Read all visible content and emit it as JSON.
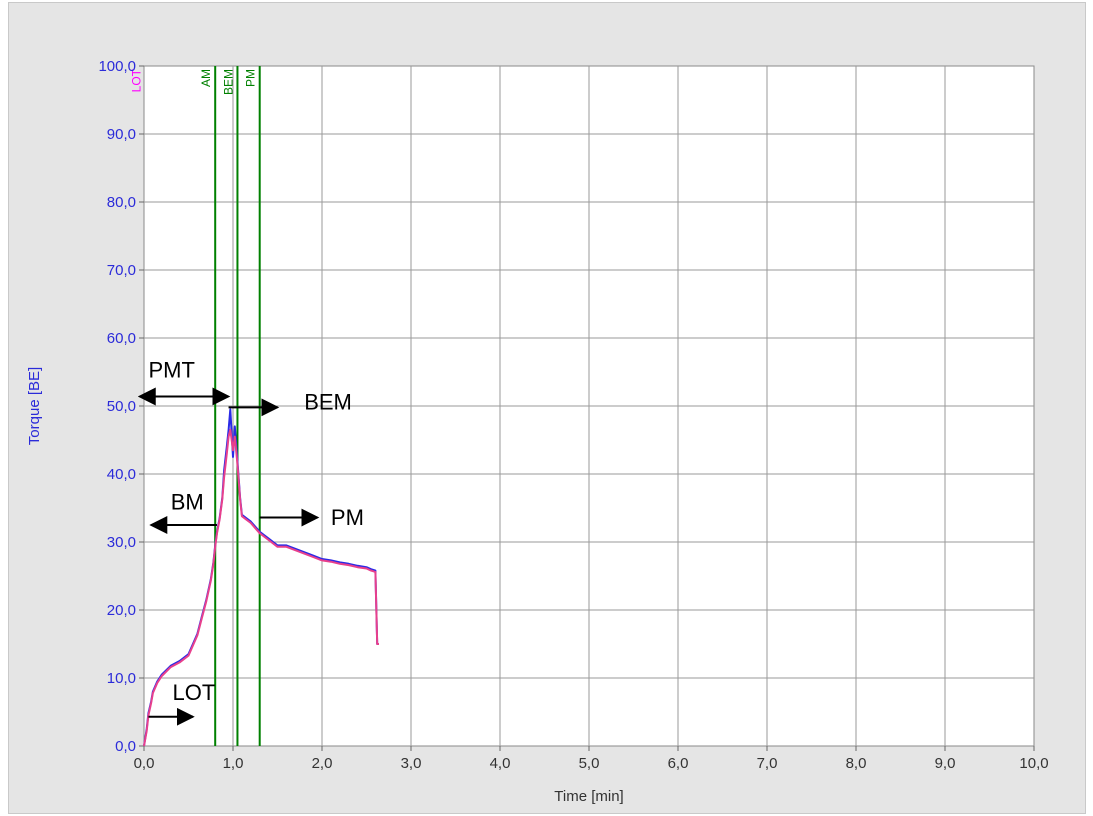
{
  "window": {
    "frame_color": "#e5e5e5",
    "plot_bg": "#ffffff",
    "grid_color": "#9a9a9a"
  },
  "chart_data": {
    "type": "line",
    "xlabel": "Time [min]",
    "ylabel": "Torque [BE]",
    "xlim": [
      0,
      10
    ],
    "ylim": [
      0,
      100
    ],
    "x_ticks": [
      "0,0",
      "1,0",
      "2,0",
      "3,0",
      "4,0",
      "5,0",
      "6,0",
      "7,0",
      "8,0",
      "9,0",
      "10,0"
    ],
    "y_ticks": [
      "0,0",
      "10,0",
      "20,0",
      "30,0",
      "40,0",
      "50,0",
      "60,0",
      "70,0",
      "80,0",
      "90,0",
      "100,0"
    ],
    "grid": true,
    "series": [
      {
        "color": "#2a2ae6",
        "x": [
          0.0,
          0.03,
          0.05,
          0.08,
          0.1,
          0.15,
          0.2,
          0.3,
          0.4,
          0.5,
          0.6,
          0.65,
          0.7,
          0.75,
          0.78,
          0.8,
          0.82,
          0.85,
          0.88,
          0.9,
          0.93,
          0.95,
          0.97,
          1.0,
          1.02,
          1.05,
          1.08,
          1.1,
          1.15,
          1.2,
          1.3,
          1.4,
          1.5,
          1.6,
          1.7,
          1.8,
          1.9,
          2.0,
          2.1,
          2.2,
          2.3,
          2.4,
          2.5,
          2.55,
          2.6,
          2.62,
          2.64
        ],
        "y": [
          0.0,
          2.5,
          4.8,
          6.5,
          8.0,
          9.5,
          10.5,
          11.8,
          12.5,
          13.5,
          16.5,
          19.0,
          21.5,
          24.5,
          27.0,
          29.5,
          31.5,
          33.5,
          36.5,
          40.5,
          44.0,
          46.5,
          49.5,
          42.5,
          47.0,
          42.0,
          36.5,
          34.0,
          33.5,
          33.0,
          31.5,
          30.5,
          29.5,
          29.5,
          29.0,
          28.5,
          28.0,
          27.5,
          27.3,
          27.0,
          26.8,
          26.5,
          26.3,
          26.0,
          25.8,
          15.0,
          15.0
        ]
      },
      {
        "color": "#e8408c",
        "x": [
          0.0,
          0.03,
          0.05,
          0.08,
          0.1,
          0.15,
          0.2,
          0.3,
          0.4,
          0.5,
          0.6,
          0.65,
          0.7,
          0.75,
          0.78,
          0.8,
          0.82,
          0.85,
          0.88,
          0.9,
          0.93,
          0.95,
          0.97,
          1.0,
          1.02,
          1.05,
          1.08,
          1.1,
          1.15,
          1.2,
          1.3,
          1.4,
          1.5,
          1.6,
          1.7,
          1.8,
          1.9,
          2.0,
          2.1,
          2.2,
          2.3,
          2.4,
          2.5,
          2.55,
          2.6,
          2.62,
          2.64
        ],
        "y": [
          0.0,
          2.2,
          4.5,
          6.3,
          7.8,
          9.3,
          10.3,
          11.6,
          12.3,
          13.3,
          16.3,
          18.8,
          21.3,
          24.3,
          26.8,
          29.3,
          31.3,
          33.3,
          36.3,
          39.5,
          43.0,
          45.5,
          46.5,
          43.5,
          45.5,
          41.5,
          36.3,
          33.8,
          33.3,
          32.8,
          31.3,
          30.3,
          29.3,
          29.3,
          28.8,
          28.3,
          27.8,
          27.3,
          27.1,
          26.8,
          26.6,
          26.3,
          26.1,
          25.8,
          25.6,
          15.0,
          15.0
        ]
      }
    ],
    "markers": [
      {
        "label": "LOT",
        "x": 0.03,
        "color": "#ff00ff",
        "line": false
      },
      {
        "label": "AM",
        "x": 0.8,
        "color": "#008000",
        "line": true
      },
      {
        "label": "BEM",
        "x": 1.05,
        "color": "#008000",
        "line": true
      },
      {
        "label": "PM",
        "x": 1.3,
        "color": "#008000",
        "line": true
      }
    ],
    "annotations": [
      {
        "text": "PMT",
        "text_x": 0.05,
        "text_y": 54.2,
        "arrow": "both",
        "ax1": -0.05,
        "ax2": 0.95,
        "ay": 51.4
      },
      {
        "text": "BEM",
        "text_x": 1.8,
        "text_y": 49.5,
        "arrow": "right",
        "ax1": 0.95,
        "ax2": 1.5,
        "ay": 49.8
      },
      {
        "text": "BM",
        "text_x": 0.3,
        "text_y": 34.8,
        "arrow": "left",
        "ax1": 0.08,
        "ax2": 0.82,
        "ay": 32.5
      },
      {
        "text": "PM",
        "text_x": 2.1,
        "text_y": 32.5,
        "arrow": "right",
        "ax1": 1.3,
        "ax2": 1.95,
        "ay": 33.6
      },
      {
        "text": "LOT",
        "text_x": 0.32,
        "text_y": 6.8,
        "arrow": "right",
        "ax1": 0.05,
        "ax2": 0.55,
        "ay": 4.3
      }
    ]
  }
}
